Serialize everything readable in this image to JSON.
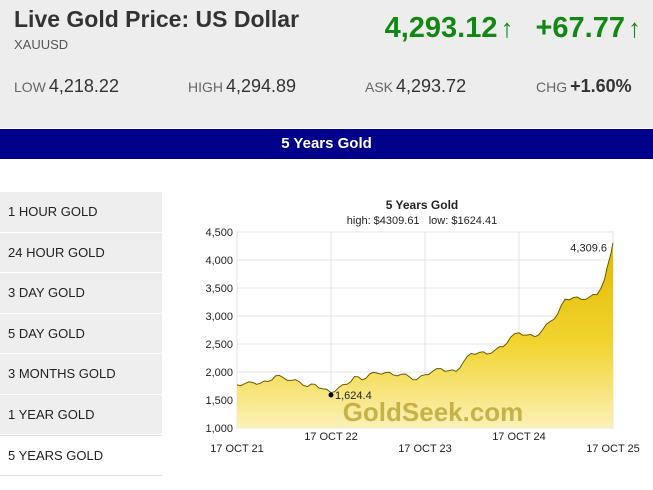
{
  "header": {
    "title": "Live Gold Price: US Dollar",
    "symbol": "XAUUSD",
    "price": "4,293.12",
    "change": "+67.77",
    "price_arrow_icon": "up-arrow-icon",
    "change_arrow_icon": "up-arrow-icon",
    "accent_color": "#118811"
  },
  "stats": {
    "low_label": "LOW",
    "low_value": "4,218.22",
    "high_label": "HIGH",
    "high_value": "4,294.89",
    "ask_label": "ASK",
    "ask_value": "4,293.72",
    "chg_label": "CHG",
    "chg_value": "+1.60%"
  },
  "banner": {
    "title": "5 Years Gold",
    "color": "#00008b"
  },
  "sidebar": {
    "items": [
      {
        "label": "1 HOUR GOLD"
      },
      {
        "label": "24 HOUR GOLD"
      },
      {
        "label": "3 DAY GOLD"
      },
      {
        "label": "5 DAY GOLD"
      },
      {
        "label": "3 MONTHS GOLD"
      },
      {
        "label": "1 YEAR GOLD"
      },
      {
        "label": "5 YEARS GOLD",
        "active": true
      }
    ]
  },
  "chart_data": {
    "type": "area",
    "title": "5 Years Gold",
    "subtitle": "high: $4309.61   low: $1624.41",
    "watermark": "GoldSeek.com",
    "ylim": [
      1000,
      4500
    ],
    "yticks": [
      "1,000",
      "1,500",
      "2,000",
      "2,500",
      "3,000",
      "3,500",
      "4,000",
      "4,500"
    ],
    "yticks_values": [
      1000,
      1500,
      2000,
      2500,
      3000,
      3500,
      4000,
      4500
    ],
    "x_labels_bottom": [
      "17 OCT 21",
      "17 OCT 23",
      "17 OCT 25"
    ],
    "x_labels_top": [
      "17 OCT 22",
      "17 OCT 24"
    ],
    "x_range": [
      2021.79,
      2025.79
    ],
    "max_annotation": {
      "label": "4,309.6",
      "value": 4309.6,
      "x": 2025.79
    },
    "min_annotation": {
      "label": "1,624.4",
      "value": 1624.4,
      "x": 2022.79
    },
    "fill_color": "#e8c400",
    "grid": true,
    "series": [
      {
        "x": [
          2021.79,
          2021.87,
          2021.96,
          2022.04,
          2022.12,
          2022.2,
          2022.28,
          2022.37,
          2022.45,
          2022.54,
          2022.62,
          2022.7,
          2022.79,
          2022.87,
          2022.96,
          2023.04,
          2023.12,
          2023.2,
          2023.28,
          2023.37,
          2023.45,
          2023.54,
          2023.62,
          2023.7,
          2023.79,
          2023.87,
          2023.96,
          2024.04,
          2024.12,
          2024.2,
          2024.28,
          2024.37,
          2024.45,
          2024.54,
          2024.62,
          2024.7,
          2024.79,
          2024.87,
          2024.96,
          2025.04,
          2025.12,
          2025.2,
          2025.28,
          2025.37,
          2025.45,
          2025.54,
          2025.62,
          2025.7,
          2025.75,
          2025.79
        ],
        "values": [
          1770,
          1790,
          1810,
          1800,
          1830,
          1930,
          1900,
          1850,
          1830,
          1740,
          1780,
          1700,
          1630,
          1720,
          1780,
          1920,
          1860,
          1960,
          1980,
          1990,
          1950,
          1960,
          1920,
          1860,
          1950,
          2010,
          2060,
          2020,
          2010,
          2180,
          2330,
          2350,
          2320,
          2400,
          2450,
          2620,
          2700,
          2660,
          2630,
          2750,
          2900,
          3030,
          3300,
          3330,
          3300,
          3340,
          3380,
          3650,
          4000,
          4309.6
        ]
      }
    ]
  }
}
